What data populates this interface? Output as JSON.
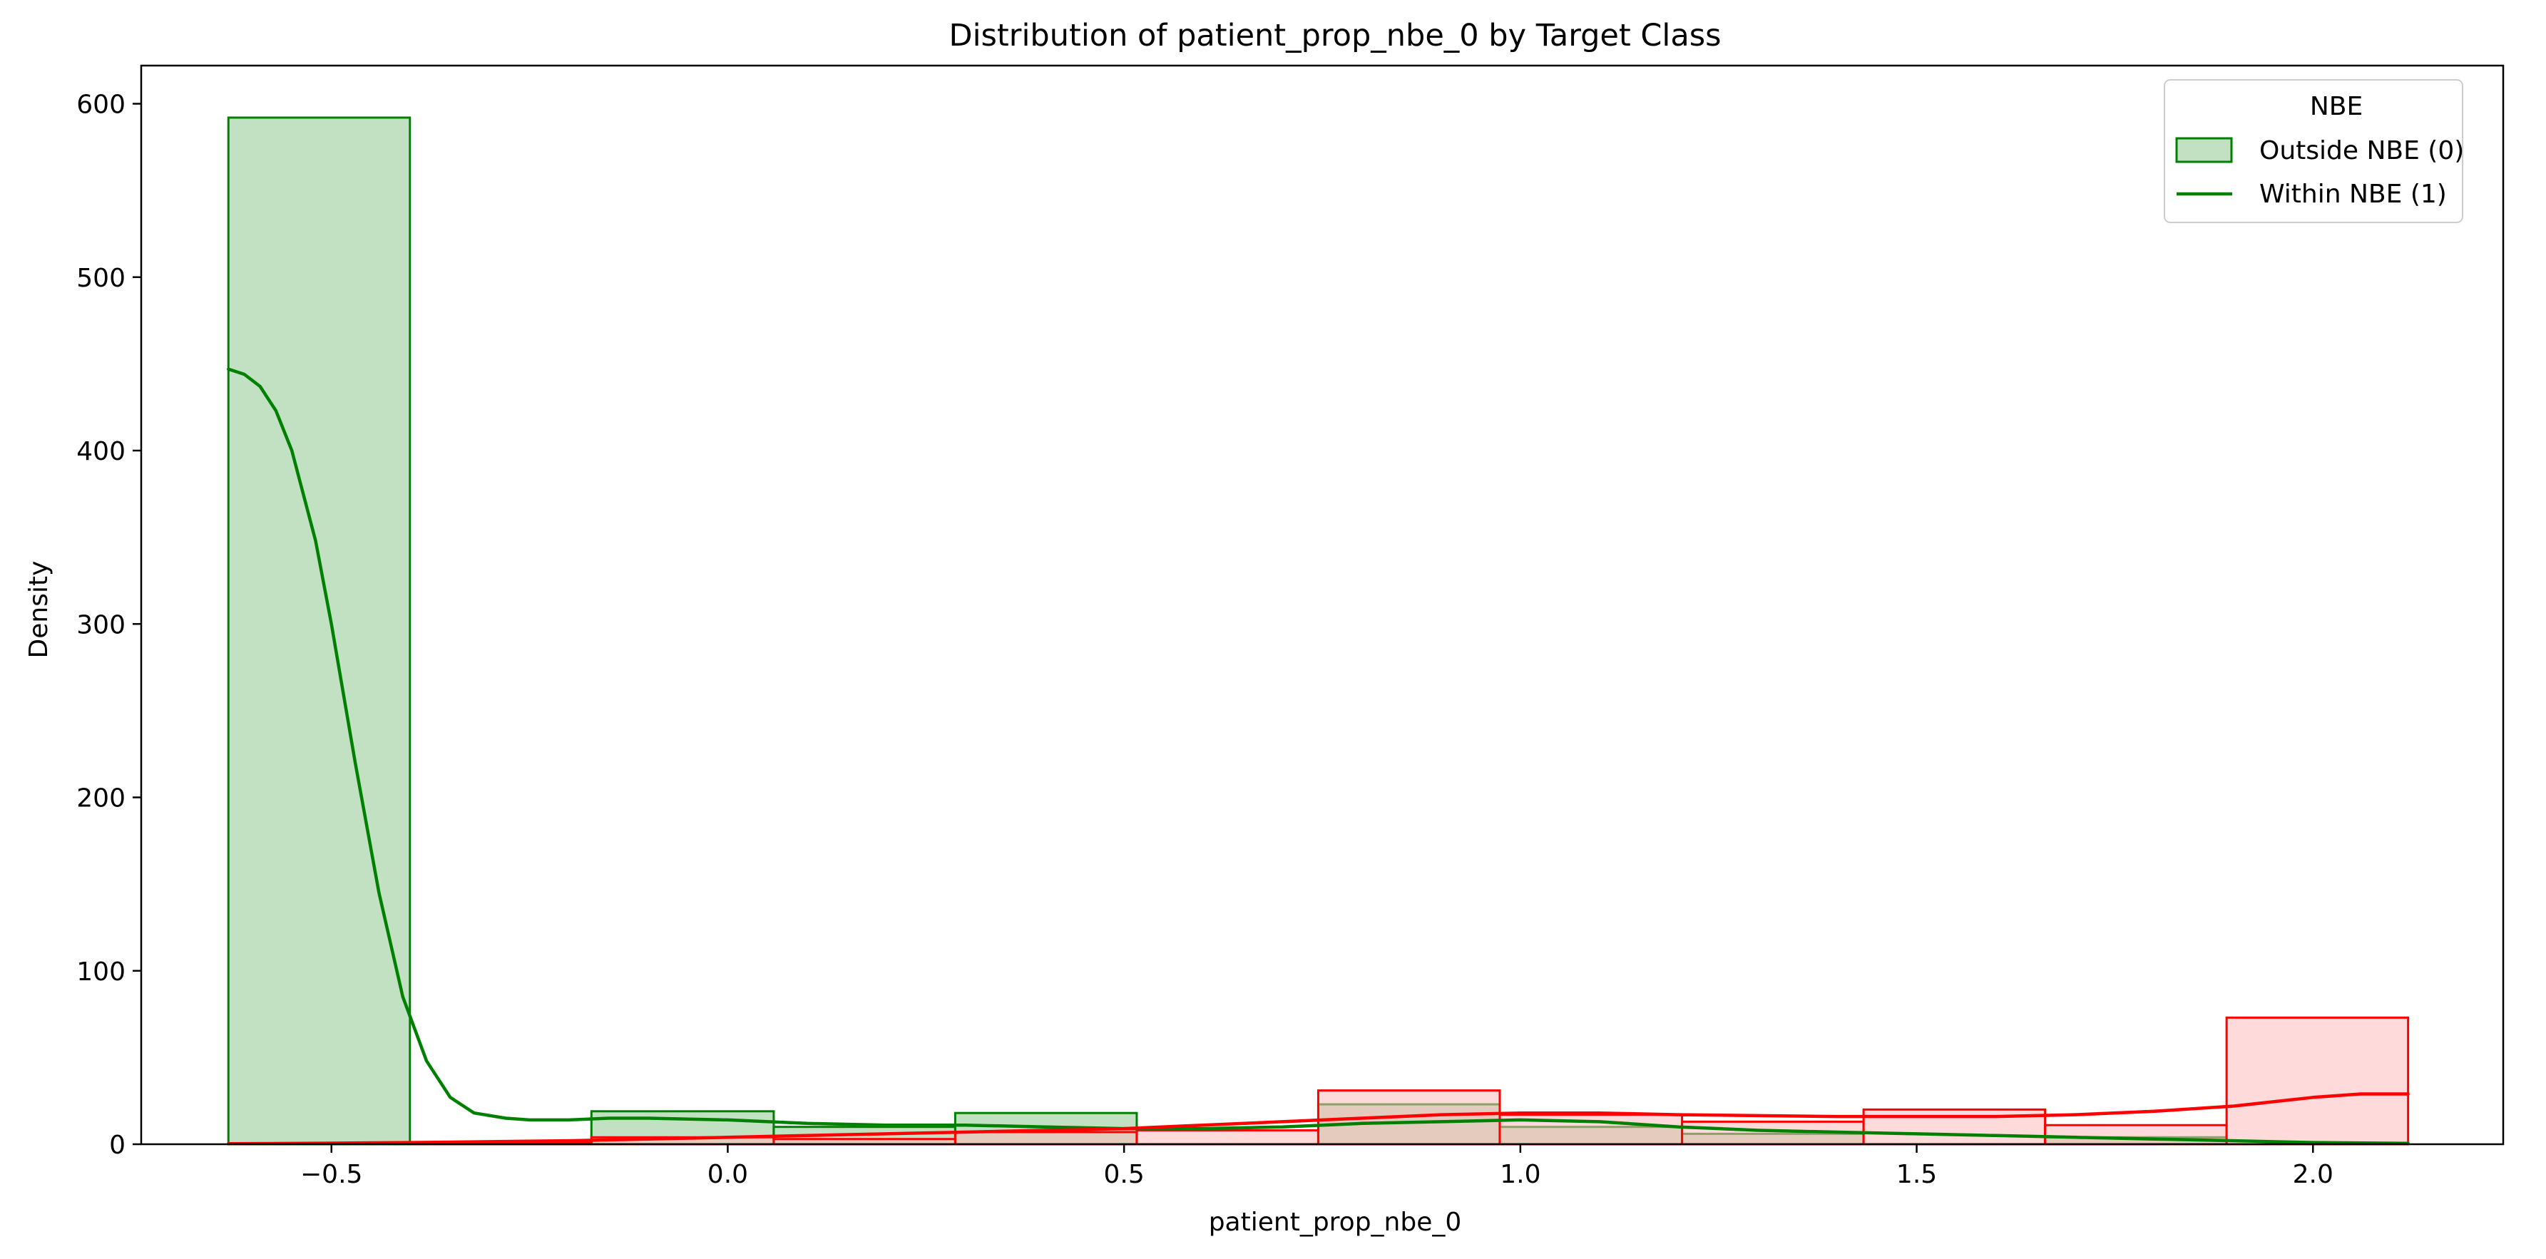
{
  "chart_data": {
    "type": "histogram",
    "title": "Distribution of patient_prop_nbe_0 by Target Class",
    "xlabel": "patient_prop_nbe_0",
    "ylabel": "Density",
    "xlim": [
      -0.74,
      2.24
    ],
    "ylim": [
      0,
      622
    ],
    "xticks": [
      -0.5,
      0.0,
      0.5,
      1.0,
      1.5,
      2.0
    ],
    "xtick_labels": [
      "−0.5",
      "0.0",
      "0.5",
      "1.0",
      "1.5",
      "2.0"
    ],
    "yticks": [
      0,
      100,
      200,
      300,
      400,
      500,
      600
    ],
    "ytick_labels": [
      "0",
      "100",
      "200",
      "300",
      "400",
      "500",
      "600"
    ],
    "grid": false,
    "bin_edges": [
      -0.63,
      -0.401,
      -0.172,
      0.058,
      0.287,
      0.516,
      0.745,
      0.974,
      1.204,
      1.433,
      1.662,
      1.891,
      2.12
    ],
    "legend": {
      "title": "NBE",
      "placement": "top-right",
      "entries": [
        {
          "label": "Outside NBE (0)",
          "kind": "patch"
        },
        {
          "label": "Within NBE (1)",
          "kind": "line"
        }
      ]
    },
    "series": [
      {
        "name": "Outside NBE (0)",
        "color": "#008000",
        "fill": "#90c990",
        "bin_values": [
          592,
          0,
          19,
          10,
          18,
          0,
          23,
          10,
          6,
          0,
          4,
          0
        ],
        "kde": {
          "x": [
            -0.63,
            -0.61,
            -0.59,
            -0.57,
            -0.55,
            -0.52,
            -0.5,
            -0.47,
            -0.44,
            -0.41,
            -0.38,
            -0.35,
            -0.32,
            -0.28,
            -0.25,
            -0.2,
            -0.15,
            -0.1,
            0.0,
            0.1,
            0.2,
            0.3,
            0.4,
            0.5,
            0.6,
            0.7,
            0.8,
            0.9,
            1.0,
            1.1,
            1.2,
            1.3,
            1.4,
            1.5,
            1.6,
            1.7,
            1.8,
            1.9,
            2.0,
            2.12
          ],
          "y": [
            447,
            444,
            437,
            423,
            400,
            348,
            300,
            220,
            145,
            85,
            48,
            27,
            18,
            15,
            14,
            14,
            15,
            15,
            14,
            12,
            11,
            11,
            10,
            9,
            9,
            10,
            12,
            13,
            14,
            13,
            10,
            8,
            7,
            6,
            5,
            4,
            3,
            2,
            1,
            0.5
          ]
        }
      },
      {
        "name": "",
        "color": "#ff0000",
        "fill": "#ffbcbc",
        "bin_values": [
          0,
          1,
          4,
          3,
          7,
          8,
          31,
          17,
          13,
          20,
          11,
          73
        ],
        "kde": {
          "x": [
            -0.63,
            -0.5,
            -0.4,
            -0.3,
            -0.2,
            -0.1,
            0.0,
            0.1,
            0.2,
            0.3,
            0.4,
            0.5,
            0.6,
            0.7,
            0.8,
            0.9,
            1.0,
            1.1,
            1.2,
            1.3,
            1.4,
            1.5,
            1.6,
            1.7,
            1.8,
            1.9,
            2.0,
            2.06,
            2.12
          ],
          "y": [
            0.3,
            0.6,
            1,
            1.5,
            2,
            3,
            4,
            5,
            6,
            7,
            8,
            9,
            11,
            13,
            15,
            17,
            18,
            18,
            17,
            16.5,
            16,
            16,
            16,
            17,
            19,
            22,
            27,
            29,
            29
          ]
        }
      }
    ]
  }
}
